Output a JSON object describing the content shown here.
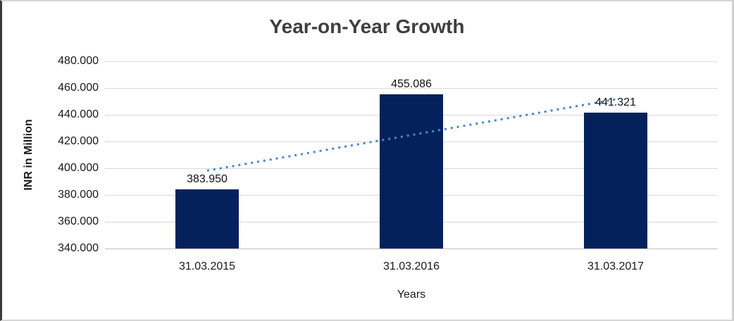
{
  "window": {
    "background": "#ffffff",
    "frame_border_color": "#d6d6d6",
    "frame_left_edge_color": "#3a3a3a"
  },
  "chart_data": {
    "type": "bar",
    "title": "Year-on-Year Growth",
    "xlabel": "Years",
    "ylabel": "INR in Million",
    "categories": [
      "31.03.2015",
      "31.03.2016",
      "31.03.2017"
    ],
    "values": [
      383.95,
      455.086,
      441.321
    ],
    "data_labels": [
      "383.950",
      "455.086",
      "441.321"
    ],
    "y_axis": {
      "min": 340,
      "max": 480,
      "step": 20,
      "tick_labels": [
        "340.000",
        "360.000",
        "380.000",
        "400.000",
        "420.000",
        "440.000",
        "460.000",
        "480.000"
      ]
    },
    "ylim": [
      340,
      480
    ],
    "grid": true,
    "legend": false,
    "trendline": {
      "type": "linear",
      "style": "dotted",
      "start_value": 398.2,
      "end_value": 451.5
    },
    "colors": {
      "bar": "#04215c",
      "trendline": "#4a86c8",
      "gridline": "#d9d9d9",
      "axis_line": "#c0c0c0",
      "text": "#1a1a1a",
      "title": "#3f3f3f"
    }
  }
}
